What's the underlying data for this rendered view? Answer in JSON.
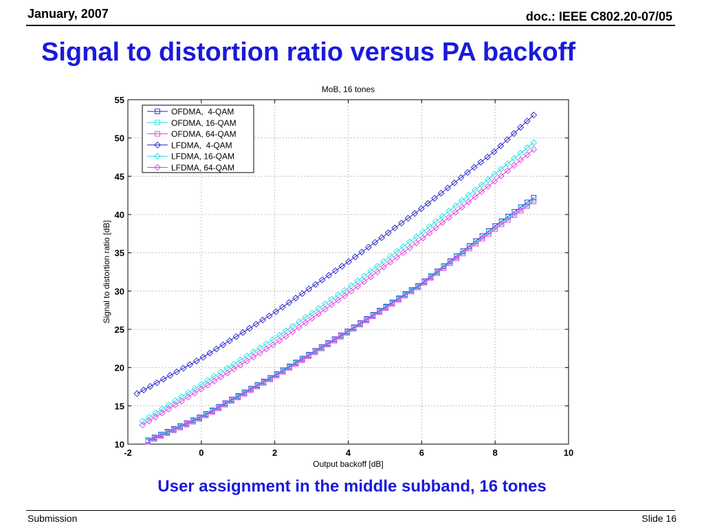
{
  "header": {
    "date": "January, 2007",
    "doc": "doc.: IEEE C802.20-07/05"
  },
  "slide_title": "Signal to distortion ratio versus PA backoff",
  "caption": "User assignment in the middle subband, 16 tones",
  "footer": {
    "left": "Submission",
    "right": "Slide 16"
  },
  "colors": {
    "title": "#1a1adb",
    "blue": "#1f1fc8",
    "cyan": "#1fdede",
    "magenta": "#e03be0"
  },
  "chart_data": {
    "type": "line",
    "title": "MoB, 16 tones",
    "xlabel": "Output backoff [dB]",
    "ylabel": "Signal to distortion ratio [dB]",
    "xlim": [
      -2,
      10
    ],
    "ylim": [
      10,
      55
    ],
    "xticks": [
      -2,
      0,
      2,
      4,
      6,
      8,
      10
    ],
    "yticks": [
      10,
      15,
      20,
      25,
      30,
      35,
      40,
      45,
      50,
      55
    ],
    "grid": true,
    "legend_position": "top-left",
    "series": [
      {
        "name": "OFDMA,  4-QAM",
        "color": "#1f1fc8",
        "marker": "square",
        "x": [
          -1.45,
          0,
          2,
          4,
          6,
          8,
          9.05
        ],
        "y": [
          10.5,
          13.6,
          19.0,
          24.8,
          31.0,
          38.5,
          42.2
        ]
      },
      {
        "name": "OFDMA, 16-QAM",
        "color": "#1fdede",
        "marker": "square",
        "x": [
          -1.45,
          0,
          2,
          4,
          6,
          8,
          9.05
        ],
        "y": [
          10.4,
          13.5,
          18.9,
          24.7,
          30.9,
          38.3,
          41.9
        ]
      },
      {
        "name": "OFDMA, 64-QAM",
        "color": "#e03be0",
        "marker": "square",
        "x": [
          -1.45,
          0,
          2,
          4,
          6,
          8,
          9.05
        ],
        "y": [
          10.3,
          13.4,
          18.8,
          24.6,
          30.8,
          38.1,
          41.7
        ]
      },
      {
        "name": "LFDMA,  4-QAM",
        "color": "#1f1fc8",
        "marker": "diamond",
        "x": [
          -1.75,
          0,
          2,
          4,
          6,
          8,
          9.05
        ],
        "y": [
          16.6,
          21.2,
          27.2,
          33.8,
          40.8,
          48.3,
          53.0
        ]
      },
      {
        "name": "LFDMA, 16-QAM",
        "color": "#1fdede",
        "marker": "diamond",
        "x": [
          -1.6,
          0,
          2,
          4,
          6,
          8,
          9.05
        ],
        "y": [
          13.0,
          17.8,
          23.8,
          30.4,
          37.6,
          45.3,
          49.4
        ]
      },
      {
        "name": "LFDMA, 64-QAM",
        "color": "#e03be0",
        "marker": "diamond",
        "x": [
          -1.6,
          0,
          2,
          4,
          6,
          8,
          9.05
        ],
        "y": [
          12.5,
          17.2,
          23.1,
          29.7,
          36.8,
          44.4,
          48.5
        ]
      }
    ]
  }
}
